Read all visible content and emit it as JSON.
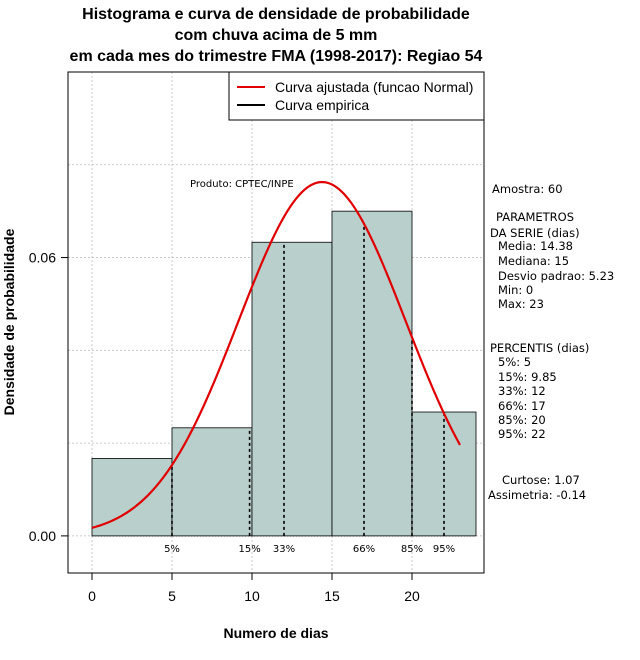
{
  "chart_data": {
    "type": "histogram",
    "title_lines": [
      "Histograma e curva de densidade de probabilidade",
      "com chuva acima de 5 mm",
      "em cada mes do trimestre FMA (1998-2017): Regiao 54"
    ],
    "xlabel": "Numero de dias",
    "ylabel": "Densidade de probabilidade",
    "xlim": [
      -1.5,
      24.5
    ],
    "ylim": [
      -0.008,
      0.1
    ],
    "x_ticks": [
      0,
      5,
      10,
      15,
      20
    ],
    "y_ticks": [
      0.0,
      0.06
    ],
    "y_tick_labels": [
      "0.00",
      "0.06"
    ],
    "grid_x": [
      0,
      5,
      10,
      15,
      20
    ],
    "grid_y": [
      0,
      0.02,
      0.04,
      0.06,
      0.08
    ],
    "bins": [
      {
        "x0": 0,
        "x1": 5,
        "density": 0.0167
      },
      {
        "x0": 5,
        "x1": 10,
        "density": 0.0233
      },
      {
        "x0": 10,
        "x1": 15,
        "density": 0.0633
      },
      {
        "x0": 15,
        "x1": 20,
        "density": 0.07
      },
      {
        "x0": 20,
        "x1": 24,
        "density": 0.0267
      }
    ],
    "normal_curve": {
      "mean": 14.38,
      "sd": 5.23,
      "x_from": 0,
      "x_to": 23
    },
    "percentile_markers": [
      {
        "label": "5%",
        "x": 5
      },
      {
        "label": "15%",
        "x": 9.85
      },
      {
        "label": "33%",
        "x": 12
      },
      {
        "label": "66%",
        "x": 17
      },
      {
        "label": "85%",
        "x": 20
      },
      {
        "label": "95%",
        "x": 22
      }
    ],
    "legend": {
      "position": "top-right",
      "entries": [
        {
          "label": "Curva ajustada (funcao Normal)",
          "color": "#e00000"
        },
        {
          "label": "Curva empirica",
          "color": "#000000"
        }
      ]
    },
    "colors": {
      "bar_fill": "#b8cfcc",
      "curve": "#e00000",
      "grid": "#bdbdbd"
    },
    "product_label": "Produto: CPTEC/INPE",
    "stats_lines": [
      "Amostra: 60",
      "PARAMETROS",
      "DA SERIE (dias)",
      "Media: 14.38",
      "Mediana: 15",
      "Desvio padrao: 5.23",
      "Min: 0",
      "Max: 23",
      "PERCENTIS (dias)",
      "5%: 5",
      "15%: 9.85",
      "33%: 12",
      "66%: 17",
      "85%: 20",
      "95%: 22",
      "Curtose: 1.07",
      "Assimetria: -0.14"
    ]
  }
}
